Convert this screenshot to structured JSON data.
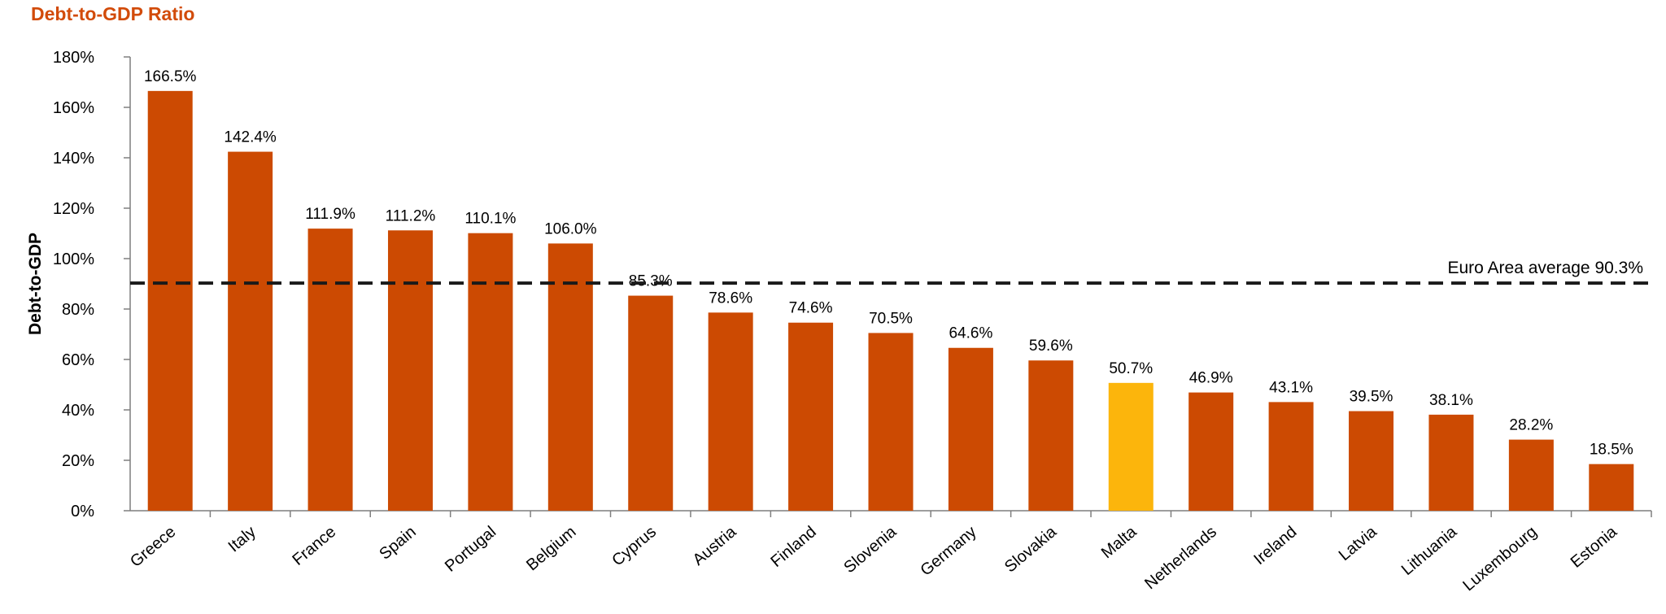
{
  "chart_data": {
    "type": "bar",
    "title": "Debt-to-GDP Ratio",
    "ylabel": "Debt-to-GDP",
    "xlabel": "",
    "ylim": [
      0,
      180
    ],
    "yticks": [
      "0%",
      "20%",
      "40%",
      "60%",
      "80%",
      "100%",
      "120%",
      "140%",
      "160%",
      "180%"
    ],
    "categories": [
      "Greece",
      "Italy",
      "France",
      "Spain",
      "Portugal",
      "Belgium",
      "Cyprus",
      "Austria",
      "Finland",
      "Slovenia",
      "Germany",
      "Slovakia",
      "Malta",
      "Netherlands",
      "Ireland",
      "Latvia",
      "Lithuania",
      "Luxembourg",
      "Estonia"
    ],
    "values": [
      166.5,
      142.4,
      111.9,
      111.2,
      110.1,
      106.0,
      85.3,
      78.6,
      74.6,
      70.5,
      64.6,
      59.6,
      50.7,
      46.9,
      43.1,
      39.5,
      38.1,
      28.2,
      18.5
    ],
    "value_labels": [
      "166.5%",
      "142.4%",
      "111.9%",
      "111.2%",
      "110.1%",
      "106.0%",
      "85.3%",
      "78.6%",
      "74.6%",
      "70.5%",
      "64.6%",
      "59.6%",
      "50.7%",
      "46.9%",
      "43.1%",
      "39.5%",
      "38.1%",
      "28.2%",
      "18.5%"
    ],
    "highlight_category": "Malta",
    "grid": false,
    "reference_line": {
      "value": 90.3,
      "label": "Euro Area average 90.3%",
      "style": "dashed"
    },
    "colors": {
      "bar": "#cc4a02",
      "highlight": "#fcb50c",
      "title": "#d24b0a",
      "reference_line": "#1a1a1a"
    }
  }
}
